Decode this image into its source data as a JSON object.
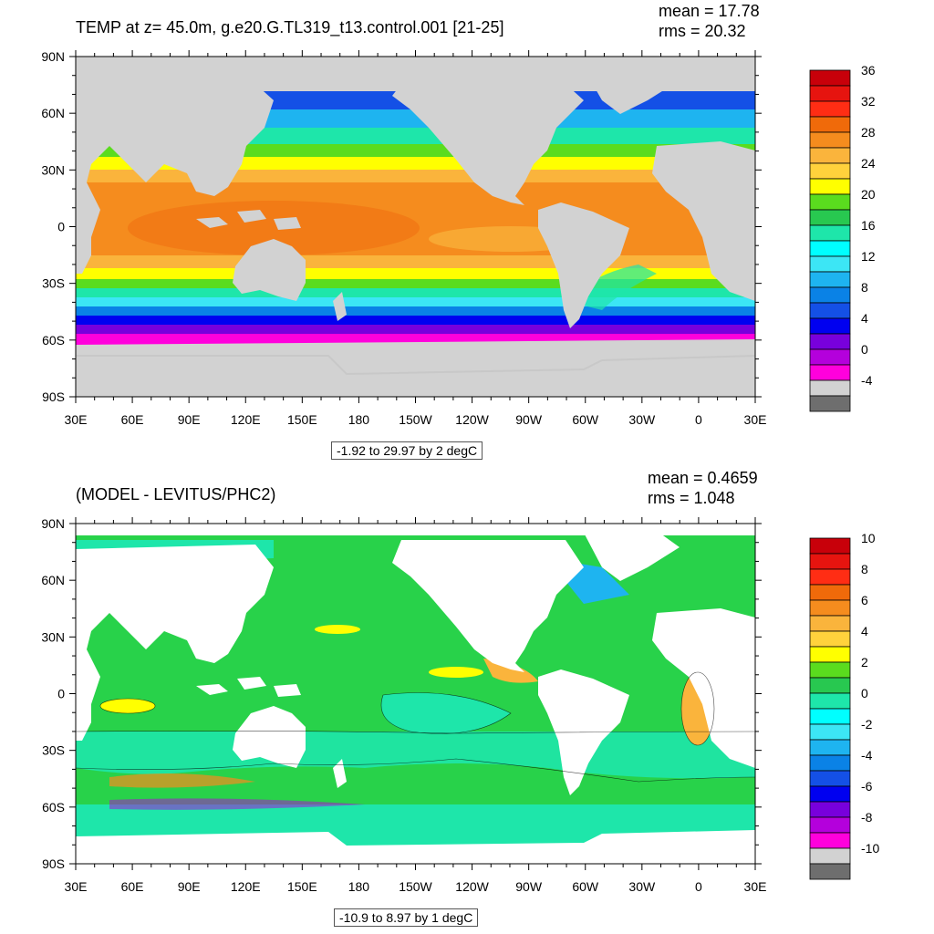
{
  "top": {
    "title": "TEMP at z=  45.0m, g.e20.G.TL319_t13.control.001 [21-25]",
    "mean": "mean = 17.78",
    "rms": "rms = 20.32",
    "range": "-1.92 to 29.97 by 2 degC",
    "lat_labels": [
      "90N",
      "60N",
      "30N",
      "0",
      "30S",
      "60S",
      "90S"
    ],
    "lon_labels": [
      "30E",
      "60E",
      "90E",
      "120E",
      "150E",
      "180",
      "150W",
      "120W",
      "90W",
      "60W",
      "30W",
      "0",
      "30E"
    ],
    "colorbar_labels": [
      "36",
      "32",
      "28",
      "24",
      "20",
      "16",
      "12",
      "8",
      "4",
      "0",
      "-4"
    ],
    "colorbar_colors": [
      "#c8000a",
      "#e6140f",
      "#ff2d14",
      "#f06a0a",
      "#f58c1e",
      "#fab43c",
      "#ffd23c",
      "#ffff00",
      "#5adc1e",
      "#28c850",
      "#1ee6aa",
      "#00ffff",
      "#3ce6f5",
      "#1eb4f0",
      "#0a82e6",
      "#1450e6",
      "#0000f0",
      "#7800dc",
      "#b400dc",
      "#ff00dc",
      "#d2d2d2",
      "#6e6e6e"
    ]
  },
  "bottom": {
    "title": "(MODEL - LEVITUS/PHC2)",
    "mean": "mean = 0.4659",
    "rms": "rms = 1.048",
    "range": "-10.9 to 8.97 by 1 degC",
    "lat_labels": [
      "90N",
      "60N",
      "30N",
      "0",
      "30S",
      "60S",
      "90S"
    ],
    "lon_labels": [
      "30E",
      "60E",
      "90E",
      "120E",
      "150E",
      "180",
      "150W",
      "120W",
      "90W",
      "60W",
      "30W",
      "0",
      "30E"
    ],
    "colorbar_labels": [
      "10",
      "8",
      "6",
      "4",
      "2",
      "0",
      "-2",
      "-4",
      "-6",
      "-8",
      "-10"
    ],
    "colorbar_colors": [
      "#c8000a",
      "#e6140f",
      "#ff2d14",
      "#f06a0a",
      "#f58c1e",
      "#fab43c",
      "#ffd23c",
      "#ffff00",
      "#5adc1e",
      "#28c850",
      "#1ee6aa",
      "#00ffff",
      "#3ce6f5",
      "#1eb4f0",
      "#0a82e6",
      "#1450e6",
      "#0000f0",
      "#7800dc",
      "#b400dc",
      "#ff00dc",
      "#d2d2d2",
      "#6e6e6e"
    ]
  },
  "colors": {
    "land_top": "#d2d2d2",
    "land_bottom": "#ffffff",
    "ocean_bottom": "#28d24a"
  }
}
